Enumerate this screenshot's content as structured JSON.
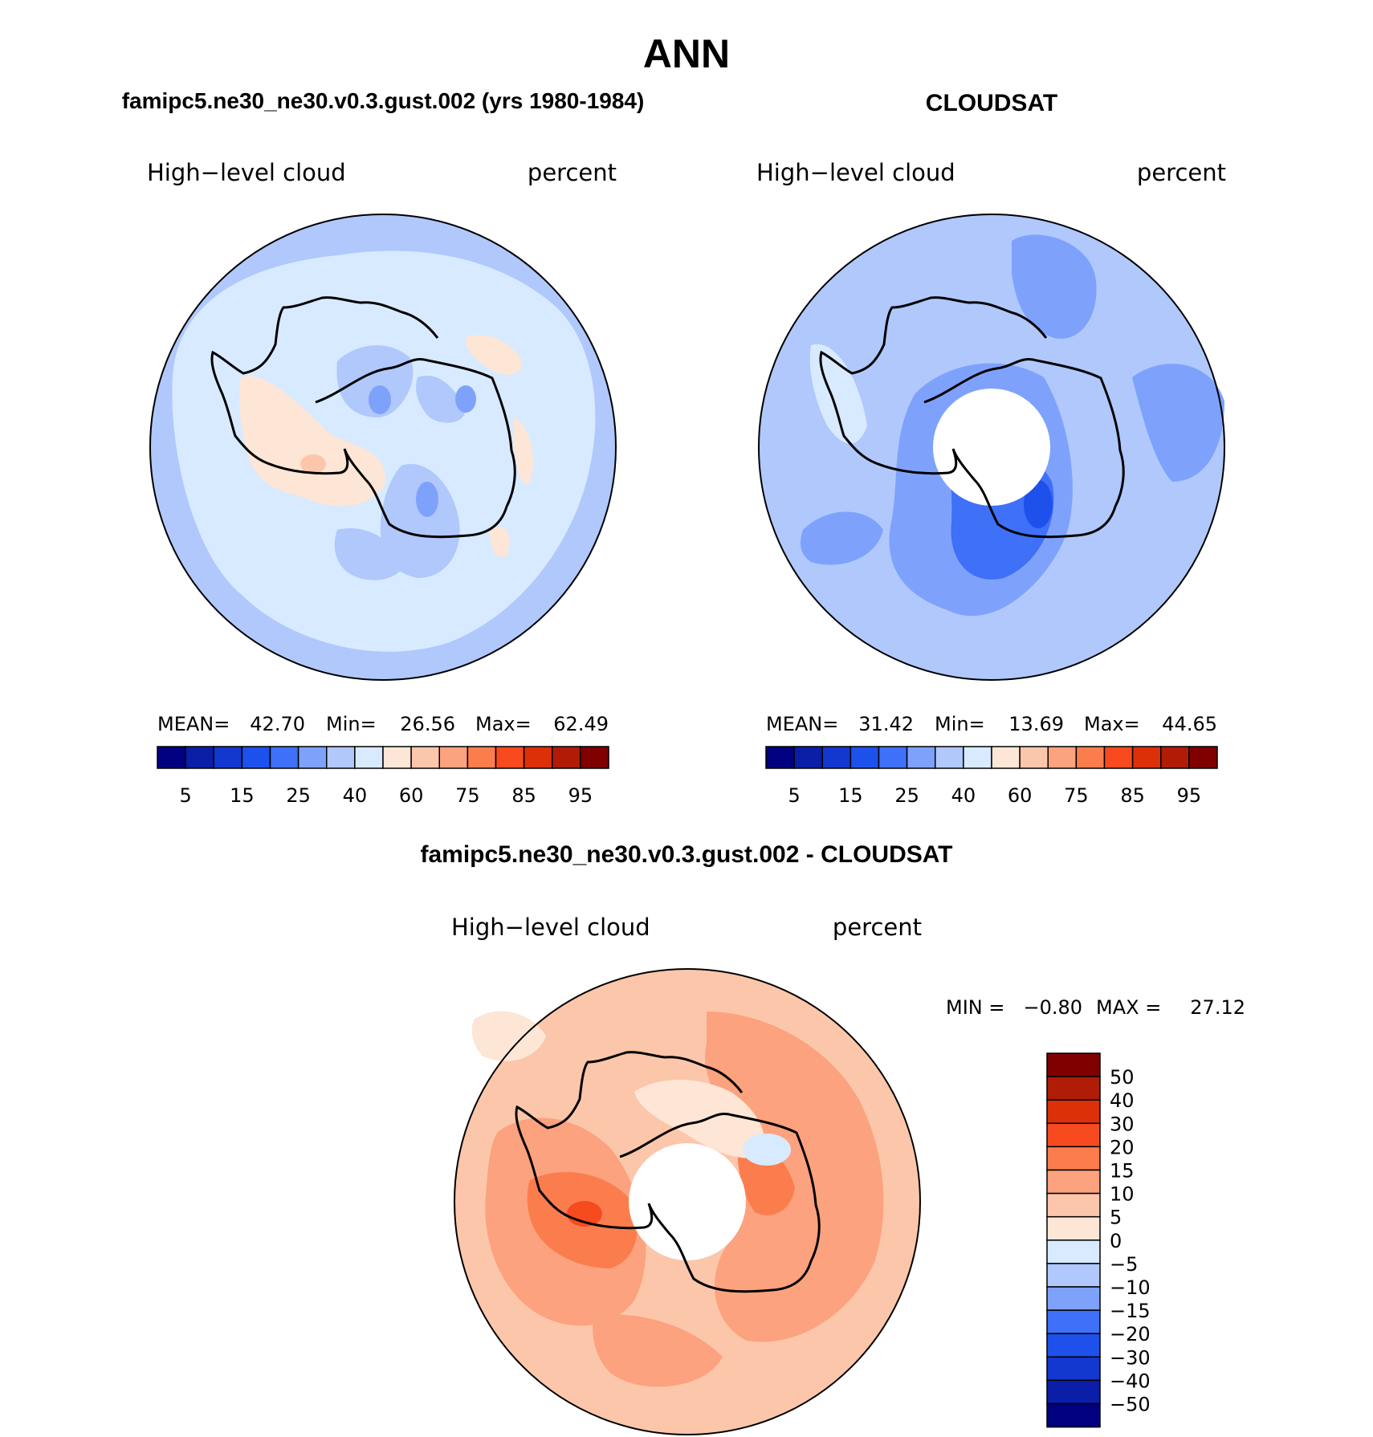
{
  "figure": {
    "season": "ANN",
    "panel_common": {
      "variable": "High−level cloud",
      "units": "percent"
    }
  },
  "chart_data": [
    {
      "type": "heatmap",
      "title": "famipc5.ne30_ne30.v0.3.gust.002 (yrs 1980-1984)",
      "projection": "polar-stereographic south",
      "subtitle_left": "High−level cloud",
      "subtitle_right": "percent",
      "stats": {
        "mean_label": "MEAN=",
        "mean": "42.70",
        "min_label": "Min=",
        "min": "26.56",
        "max_label": "Max=",
        "max": "62.49"
      },
      "levels": [
        5,
        10,
        15,
        20,
        25,
        30,
        40,
        50,
        60,
        70,
        75,
        80,
        85,
        90,
        95
      ],
      "tick_labels": [
        "5",
        "15",
        "25",
        "40",
        "60",
        "75",
        "85",
        "95"
      ],
      "colors": [
        "#000080",
        "#0a1ea8",
        "#1238d0",
        "#1e50ec",
        "#3e70f8",
        "#7ea2fc",
        "#b0c8fc",
        "#d8eaff",
        "#fde6d6",
        "#fcc6aa",
        "#fca27e",
        "#fb7d4e",
        "#f74a1e",
        "#dc3008",
        "#b01c06",
        "#800000"
      ],
      "approx_field": "mostly 40-50 and 50-60 bins over Antarctica; 30-40 ring near 60S"
    },
    {
      "type": "heatmap",
      "title": "CLOUDSAT",
      "projection": "polar-stereographic south",
      "subtitle_left": "High−level cloud",
      "subtitle_right": "percent",
      "stats": {
        "mean_label": "MEAN=",
        "mean": "31.42",
        "min_label": "Min=",
        "min": "13.69",
        "max_label": "Max=",
        "max": "44.65"
      },
      "levels": [
        5,
        10,
        15,
        20,
        25,
        30,
        40,
        50,
        60,
        70,
        75,
        80,
        85,
        90,
        95
      ],
      "tick_labels": [
        "5",
        "15",
        "25",
        "40",
        "60",
        "75",
        "85",
        "95"
      ],
      "colors": [
        "#000080",
        "#0a1ea8",
        "#1238d0",
        "#1e50ec",
        "#3e70f8",
        "#7ea2fc",
        "#b0c8fc",
        "#d8eaff",
        "#fde6d6",
        "#fcc6aa",
        "#fca27e",
        "#fb7d4e",
        "#f74a1e",
        "#dc3008",
        "#b01c06",
        "#800000"
      ],
      "approx_field": "mostly 30-40 bin; 20-30 over East Antarctica; missing data poleward of ~82S"
    },
    {
      "type": "heatmap",
      "title": "famipc5.ne30_ne30.v0.3.gust.002 - CLOUDSAT",
      "projection": "polar-stereographic south",
      "subtitle_left": "High−level cloud",
      "subtitle_right": "percent",
      "stats": {
        "min_label": "MIN =",
        "min": "−0.80",
        "max_label": "MAX =",
        "max": "27.12"
      },
      "levels": [
        -50,
        -40,
        -30,
        -20,
        -15,
        -10,
        -5,
        0,
        5,
        10,
        15,
        20,
        30,
        40,
        50
      ],
      "tick_labels": [
        "50",
        "40",
        "30",
        "20",
        "15",
        "10",
        "5",
        "0",
        "−5",
        "−10",
        "−15",
        "−20",
        "−30",
        "−40",
        "−50"
      ],
      "colors": [
        "#800000",
        "#b01c06",
        "#dc3008",
        "#f74a1e",
        "#fb7d4e",
        "#fca27e",
        "#fcc6aa",
        "#fde6d6",
        "#d8eaff",
        "#b0c8fc",
        "#7ea2fc",
        "#3e70f8",
        "#1e50ec",
        "#1238d0",
        "#0a1ea8",
        "#000080"
      ],
      "approx_field": "mostly 5-20 positive differences; 15-20 over West Antarctica; missing data poleward of ~82S"
    }
  ]
}
